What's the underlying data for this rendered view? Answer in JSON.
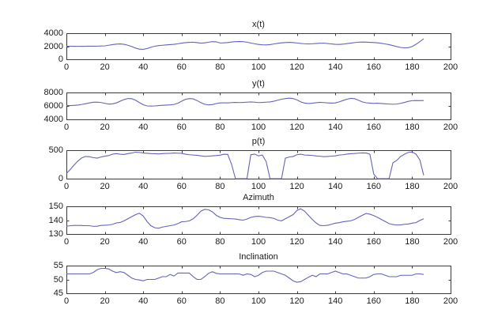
{
  "figure": {
    "background": "#ffffff",
    "axis_color": "#3a3a3a",
    "text_color": "#1a1a1a",
    "line_color": "#6464b8"
  },
  "chart_data": [
    {
      "type": "line",
      "title": "x(t)",
      "xlim": [
        0,
        200
      ],
      "xticks": [
        0,
        20,
        40,
        60,
        80,
        100,
        120,
        140,
        160,
        180,
        200
      ],
      "ylim": [
        0,
        4000
      ],
      "yticks": [
        0,
        2000,
        4000
      ],
      "grid": false,
      "x_start": 0,
      "x_step": 2,
      "values": [
        2000,
        2000,
        1990,
        1985,
        1990,
        2000,
        2010,
        2005,
        2015,
        2040,
        2060,
        2150,
        2250,
        2330,
        2350,
        2300,
        2150,
        1950,
        1720,
        1550,
        1520,
        1650,
        1850,
        2000,
        2100,
        2150,
        2200,
        2250,
        2300,
        2380,
        2480,
        2550,
        2600,
        2620,
        2550,
        2480,
        2520,
        2620,
        2700,
        2680,
        2500,
        2520,
        2570,
        2640,
        2700,
        2720,
        2700,
        2620,
        2500,
        2380,
        2280,
        2220,
        2200,
        2250,
        2350,
        2450,
        2520,
        2570,
        2600,
        2570,
        2500,
        2430,
        2380,
        2360,
        2380,
        2420,
        2460,
        2470,
        2420,
        2350,
        2300,
        2280,
        2320,
        2400,
        2480,
        2560,
        2620,
        2650,
        2630,
        2600,
        2570,
        2520,
        2450,
        2350,
        2250,
        2100,
        1950,
        1820,
        1750,
        1780,
        1950,
        2300,
        2700,
        3150
      ]
    },
    {
      "type": "line",
      "title": "y(t)",
      "xlim": [
        0,
        200
      ],
      "xticks": [
        0,
        20,
        40,
        60,
        80,
        100,
        120,
        140,
        160,
        180,
        200
      ],
      "ylim": [
        4000,
        8000
      ],
      "yticks": [
        4000,
        6000,
        8000
      ],
      "grid": false,
      "x_start": 0,
      "x_step": 2,
      "values": [
        6050,
        6050,
        6080,
        6130,
        6220,
        6330,
        6450,
        6550,
        6570,
        6500,
        6380,
        6270,
        6300,
        6450,
        6700,
        6950,
        7100,
        7080,
        6850,
        6500,
        6180,
        6000,
        5980,
        6000,
        6050,
        6100,
        6120,
        6150,
        6220,
        6400,
        6700,
        6980,
        7100,
        7050,
        6800,
        6480,
        6250,
        6150,
        6200,
        6350,
        6450,
        6470,
        6450,
        6500,
        6520,
        6500,
        6520,
        6560,
        6600,
        6560,
        6500,
        6520,
        6560,
        6600,
        6700,
        6850,
        7000,
        7100,
        7150,
        7100,
        6900,
        6600,
        6420,
        6360,
        6400,
        6480,
        6540,
        6500,
        6450,
        6420,
        6450,
        6600,
        6800,
        7000,
        7120,
        7080,
        6850,
        6600,
        6470,
        6420,
        6380,
        6400,
        6360,
        6320,
        6280,
        6250,
        6280,
        6380,
        6520,
        6680,
        6780,
        6800,
        6790,
        6800
      ]
    },
    {
      "type": "line",
      "title": "p(t)",
      "xlim": [
        0,
        200
      ],
      "xticks": [
        0,
        20,
        40,
        60,
        80,
        100,
        120,
        140,
        160,
        180,
        200
      ],
      "ylim": [
        0,
        500
      ],
      "yticks": [
        0,
        500
      ],
      "grid": false,
      "x_start": 0,
      "x_step": 2,
      "values": [
        90,
        160,
        240,
        310,
        365,
        390,
        385,
        370,
        360,
        380,
        395,
        405,
        430,
        440,
        430,
        425,
        440,
        450,
        465,
        460,
        450,
        445,
        440,
        438,
        435,
        440,
        443,
        445,
        450,
        448,
        445,
        430,
        420,
        415,
        410,
        400,
        392,
        396,
        400,
        405,
        412,
        430,
        425,
        250,
        0,
        0,
        0,
        0,
        420,
        432,
        400,
        415,
        300,
        0,
        0,
        0,
        0,
        360,
        380,
        390,
        420,
        430,
        415,
        412,
        408,
        398,
        394,
        386,
        390,
        396,
        400,
        415,
        420,
        432,
        438,
        442,
        448,
        452,
        450,
        430,
        80,
        0,
        0,
        0,
        0,
        280,
        320,
        390,
        430,
        460,
        470,
        430,
        330,
        60
      ]
    },
    {
      "type": "line",
      "title": "Azimuth",
      "xlim": [
        0,
        200
      ],
      "xticks": [
        0,
        20,
        40,
        60,
        80,
        100,
        120,
        140,
        160,
        180,
        200
      ],
      "ylim": [
        130,
        150
      ],
      "yticks": [
        130,
        140,
        150
      ],
      "grid": false,
      "x_start": 0,
      "x_step": 2,
      "values": [
        135.5,
        136,
        136.2,
        136.2,
        136.1,
        136,
        136,
        135.5,
        135.6,
        136.2,
        136.3,
        136.5,
        137,
        138,
        138.3,
        139.5,
        141,
        142.5,
        144,
        145,
        143,
        139,
        136,
        134.5,
        134.2,
        135,
        135.5,
        136,
        136.5,
        137.5,
        138.8,
        139,
        139.5,
        141,
        143.5,
        146.5,
        147.8,
        147.5,
        146,
        143.5,
        142,
        141.3,
        141.2,
        141,
        140.8,
        140.3,
        140,
        140.8,
        142,
        142.6,
        142.8,
        142.5,
        142,
        141.8,
        141.3,
        140,
        139.5,
        141,
        142.5,
        144,
        147,
        148.2,
        146.5,
        143.5,
        140.5,
        138,
        136.2,
        136,
        136.3,
        137,
        137.8,
        138.2,
        138.8,
        139.2,
        139.5,
        140.5,
        142,
        143.5,
        144.8,
        144.3,
        143.3,
        142,
        140.5,
        139,
        137.5,
        136.8,
        136.5,
        136.6,
        137,
        137.2,
        137.8,
        138.2,
        139.8,
        141
      ]
    },
    {
      "type": "line",
      "title": "Inclination",
      "xlim": [
        0,
        200
      ],
      "xticks": [
        0,
        20,
        40,
        60,
        80,
        100,
        120,
        140,
        160,
        180,
        200
      ],
      "ylim": [
        45,
        55
      ],
      "yticks": [
        45,
        50,
        55
      ],
      "grid": false,
      "x_start": 0,
      "x_step": 2,
      "values": [
        52,
        52,
        52,
        52,
        52,
        52,
        52,
        52.5,
        53.5,
        54,
        54,
        53.8,
        53,
        52.5,
        52.8,
        52.5,
        51.5,
        50.5,
        50,
        49.8,
        49.5,
        50,
        50,
        50,
        50.5,
        51,
        51,
        51.8,
        51.2,
        52.3,
        52.3,
        52.3,
        52.3,
        51,
        50,
        50,
        51,
        52.2,
        52.8,
        52.2,
        52,
        52,
        52,
        52,
        52,
        52,
        51.5,
        52,
        51.8,
        51,
        51.5,
        52.5,
        53,
        53,
        53,
        52.5,
        52,
        51.5,
        50.5,
        49.5,
        49,
        49.2,
        50,
        50.8,
        51.5,
        51,
        52,
        52,
        52,
        52.5,
        53,
        52.5,
        52,
        52,
        51.5,
        51,
        50.5,
        50.5,
        50.5,
        51,
        51.8,
        52,
        52,
        51.5,
        51,
        51,
        51,
        51.5,
        51.5,
        51.5,
        51.5,
        52,
        52,
        51.8
      ]
    }
  ]
}
